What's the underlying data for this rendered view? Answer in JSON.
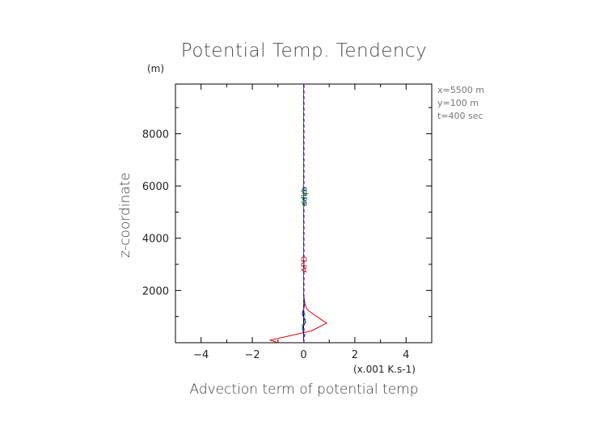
{
  "chart_data": {
    "type": "line",
    "title": "Potential Temp. Tendency",
    "xlabel": "Advection term of potential temp",
    "xunit": "(x.001 K.s-1)",
    "ylabel": "z-coordinate",
    "yunit": "(m)",
    "xlim": [
      -5,
      5
    ],
    "ylim": [
      0,
      9900
    ],
    "xticks": [
      -4,
      -2,
      0,
      2,
      4
    ],
    "xtick_labels": [
      "−4",
      "−2",
      "0",
      "2",
      "4"
    ],
    "yticks": [
      2000,
      4000,
      6000,
      8000
    ],
    "ytick_labels": [
      "2000",
      "4000",
      "6000",
      "8000"
    ],
    "info": [
      "x=5500 m",
      "y=100 m",
      "t=400 sec"
    ],
    "grid": false,
    "zero_line": {
      "x": 0,
      "color": "#000000"
    },
    "series": [
      {
        "color": "#e00000",
        "style": "solid",
        "points": [
          [
            -1.0,
            0
          ],
          [
            -1.3,
            100
          ],
          [
            -0.6,
            250
          ],
          [
            0.3,
            450
          ],
          [
            0.9,
            750
          ],
          [
            0.6,
            950
          ],
          [
            0.15,
            1250
          ],
          [
            0.0,
            1600
          ],
          [
            0.0,
            3200
          ],
          [
            0.0,
            9900
          ]
        ],
        "labels": [
          {
            "text": "APD",
            "x": 0.0,
            "y": 3000
          }
        ]
      },
      {
        "color": "#0000cc",
        "style": "solid",
        "points": [
          [
            0.0,
            0
          ],
          [
            0.0,
            350
          ],
          [
            -0.05,
            550
          ],
          [
            0.08,
            800
          ],
          [
            -0.05,
            1100
          ],
          [
            0.05,
            1500
          ],
          [
            0.0,
            1800
          ],
          [
            0.0,
            9900
          ]
        ],
        "labels": [
          {
            "text": "sdvb",
            "x": 0.0,
            "y": 5600
          }
        ]
      },
      {
        "color": "#00a000",
        "style": "dashed",
        "points": [
          [
            0.0,
            0
          ],
          [
            0.05,
            300
          ],
          [
            -0.08,
            600
          ],
          [
            0.08,
            900
          ],
          [
            0.0,
            1300
          ],
          [
            0.0,
            9900
          ]
        ],
        "labels": [
          {
            "text": "dslp",
            "x": 0.0,
            "y": 5550
          }
        ]
      },
      {
        "color": "#b000b0",
        "style": "dashed",
        "points": [
          [
            0.02,
            0
          ],
          [
            0.02,
            9900
          ]
        ],
        "labels": []
      }
    ]
  }
}
